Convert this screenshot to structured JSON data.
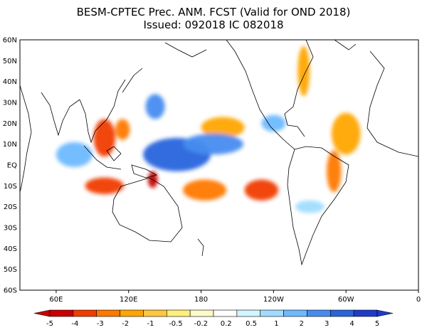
{
  "title": {
    "line1": "BESM-CPTEC Prec. ANM. FCST  (Valid for OND 2018)",
    "line2": "Issued:  092018 IC 082018"
  },
  "lat_labels": [
    "60N",
    "50N",
    "40N",
    "30N",
    "20N",
    "10N",
    "EQ",
    "10S",
    "20S",
    "30S",
    "40S",
    "50S",
    "60S"
  ],
  "lon_labels": [
    "60E",
    "120E",
    "180",
    "120W",
    "60W",
    "0"
  ],
  "colorbar": {
    "labels": [
      "-5",
      "-4",
      "-3",
      "-2",
      "-1",
      "-0.5",
      "-0.2",
      "0.2",
      "0.5",
      "1",
      "2",
      "3",
      "4",
      "5"
    ],
    "colors": [
      "#c80000",
      "#f03c00",
      "#ff7800",
      "#ffa500",
      "#ffc83c",
      "#fff07a",
      "#fffbc8",
      "#ffffff",
      "#d2f5ff",
      "#a0dcff",
      "#6eb9ff",
      "#468cf0",
      "#2864dc",
      "#1e3cc8"
    ]
  },
  "anomaly_blobs": [
    {
      "lon": 100,
      "lat": 13,
      "rx": 9,
      "ry": 9,
      "level": "-4"
    },
    {
      "lon": 115,
      "lat": 17,
      "rx": 6,
      "ry": 5,
      "level": "-3"
    },
    {
      "lon": 100,
      "lat": -10,
      "rx": 16,
      "ry": 4,
      "level": "-4"
    },
    {
      "lon": 183,
      "lat": -12,
      "rx": 18,
      "ry": 5,
      "level": "-3"
    },
    {
      "lon": 140,
      "lat": -7,
      "rx": 4,
      "ry": 4,
      "level": "-5"
    },
    {
      "lon": 230,
      "lat": -12,
      "rx": 14,
      "ry": 5,
      "level": "-4"
    },
    {
      "lon": 300,
      "lat": 15,
      "rx": 12,
      "ry": 10,
      "level": "-2"
    },
    {
      "lon": 290,
      "lat": -3,
      "rx": 6,
      "ry": 10,
      "level": "-3"
    },
    {
      "lon": 198,
      "lat": 18,
      "rx": 18,
      "ry": 5,
      "level": "-2"
    },
    {
      "lon": 265,
      "lat": 45,
      "rx": 5,
      "ry": 12,
      "level": "-2"
    },
    {
      "lon": 160,
      "lat": 5,
      "rx": 28,
      "ry": 8,
      "level": "4"
    },
    {
      "lon": 190,
      "lat": 10,
      "rx": 25,
      "ry": 5,
      "level": "3"
    },
    {
      "lon": 75,
      "lat": 5,
      "rx": 15,
      "ry": 6,
      "level": "2"
    },
    {
      "lon": 142,
      "lat": 28,
      "rx": 8,
      "ry": 6,
      "level": "3"
    },
    {
      "lon": 240,
      "lat": 20,
      "rx": 10,
      "ry": 4,
      "level": "2"
    },
    {
      "lon": 270,
      "lat": -20,
      "rx": 12,
      "ry": 3,
      "level": "1"
    }
  ]
}
